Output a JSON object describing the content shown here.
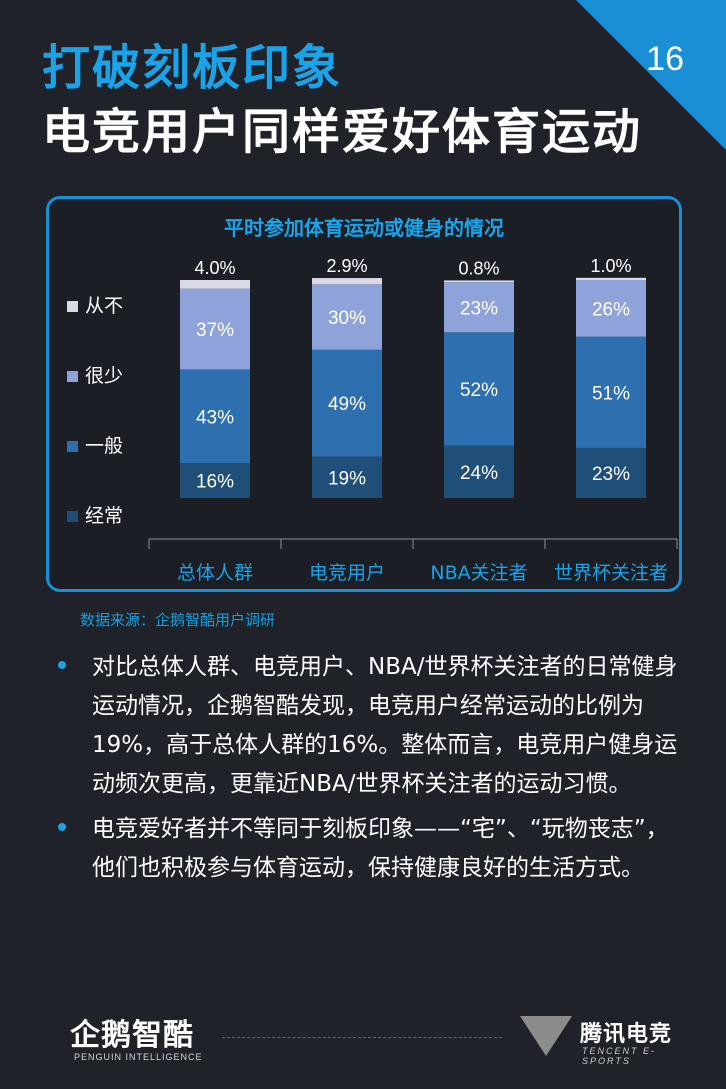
{
  "page": {
    "number": "16"
  },
  "header": {
    "title_line1": "打破刻板印象",
    "title_line2": "电竞用户同样爱好体育运动"
  },
  "colors": {
    "background": "#1f2228",
    "accent_blue": "#1aa3e8",
    "never": "#d9d9e8",
    "seldom": "#8fa3db",
    "sometimes": "#2e6fb0",
    "often": "#1f4e79"
  },
  "chart_data": {
    "type": "bar",
    "stacked": true,
    "title": "平时参加体育运动或健身的情况",
    "categories": [
      "总体人群",
      "电竞用户",
      "NBA关注者",
      "世界杯关注者"
    ],
    "series": [
      {
        "name": "经常",
        "values": [
          16,
          19,
          24,
          23
        ],
        "labels": [
          "16%",
          "19%",
          "24%",
          "23%"
        ],
        "color": "#1f4e79"
      },
      {
        "name": "一般",
        "values": [
          43,
          49,
          52,
          51
        ],
        "labels": [
          "43%",
          "49%",
          "52%",
          "51%"
        ],
        "color": "#2e6fb0"
      },
      {
        "name": "很少",
        "values": [
          37,
          30,
          23,
          26
        ],
        "labels": [
          "37%",
          "30%",
          "23%",
          "26%"
        ],
        "color": "#8fa3db"
      },
      {
        "name": "从不",
        "values": [
          4.0,
          2.9,
          0.8,
          1.0
        ],
        "labels": [
          "4.0%",
          "2.9%",
          "0.8%",
          "1.0%"
        ],
        "color": "#d9d9e8"
      }
    ],
    "legend_position": "left",
    "ylim": [
      0,
      100
    ],
    "grid": false
  },
  "source": "数据来源：企鹅智酷用户调研",
  "bullets": [
    "对比总体人群、电竞用户、NBA/世界杯关注者的日常健身运动情况，企鹅智酷发现，电竞用户经常运动的比例为19%，高于总体人群的16%。整体而言，电竞用户健身运动频次更高，更靠近NBA/世界杯关注者的运动习惯。",
    "电竞爱好者并不等同于刻板印象——“宅”、“玩物丧志”，他们也积极参与体育运动，保持健康良好的生活方式。"
  ],
  "footer": {
    "left_logo": "企鹅智酷",
    "left_logo_sub": "PENGUIN INTELLIGENCE",
    "right_logo": "腾讯电竞",
    "right_logo_sub": "TENCENT E-SPORTS"
  }
}
